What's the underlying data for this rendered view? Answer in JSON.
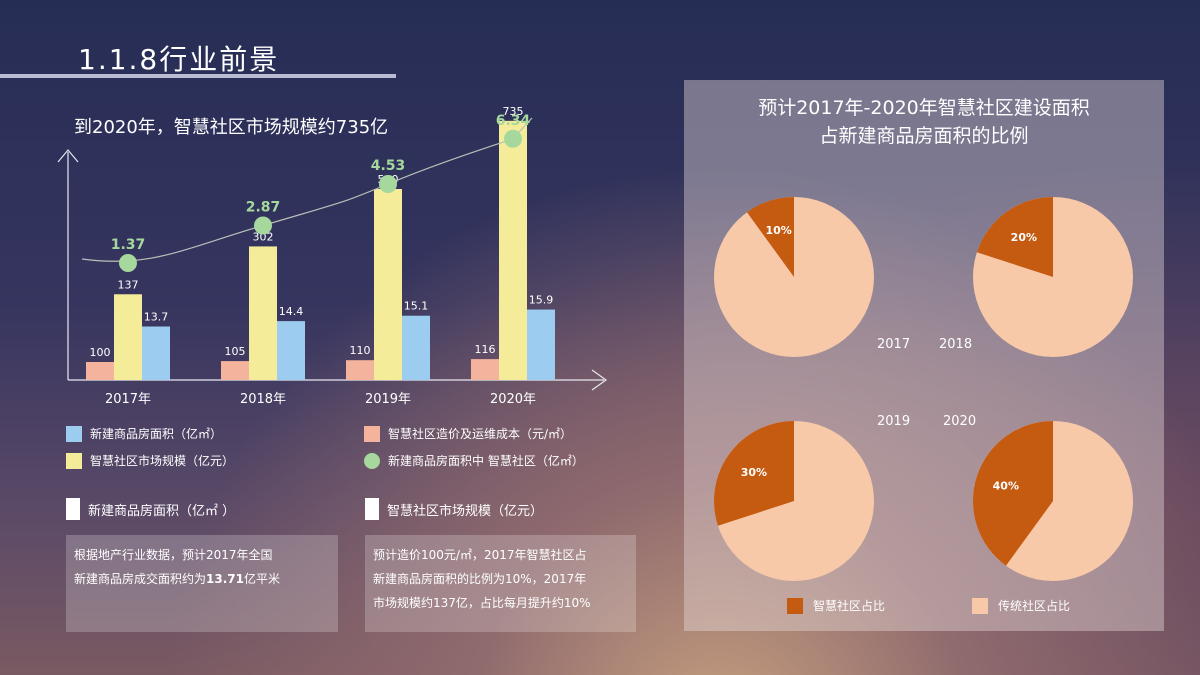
{
  "header": {
    "title": "1.1.8行业前景"
  },
  "subtitle": "到2020年，智慧社区市场规模约735亿",
  "chart_data": [
    {
      "type": "bar",
      "categories": [
        "2017年",
        "2018年",
        "2019年",
        "2020年"
      ],
      "series": [
        {
          "name": "智慧社区造价及运维成本（元/㎡）",
          "values": [
            100,
            105,
            110,
            116
          ],
          "color": "#f4b39c"
        },
        {
          "name": "智慧社区市场规模（亿元）",
          "values": [
            137,
            302,
            500,
            735
          ],
          "color": "#f5ec9a"
        },
        {
          "name": "新建商品房面积（亿㎡）",
          "values": [
            13.7,
            14.4,
            15.1,
            15.9
          ],
          "color": "#9ccdf0"
        },
        {
          "name": "新建商品房面积中 智慧社区（亿㎡）",
          "values": [
            1.37,
            2.87,
            4.53,
            6.34
          ],
          "color": "#a6d79c"
        }
      ]
    },
    {
      "type": "pie",
      "title": "预计2017年-2020年智慧社区建设面积占新建商品房面积的比例",
      "categories": [
        "2017",
        "2018",
        "2019",
        "2020"
      ],
      "series": [
        {
          "name": "智慧社区占比",
          "values": [
            10,
            20,
            30,
            40
          ],
          "labels": [
            "10%",
            "20%",
            "30%",
            "40%"
          ],
          "color": "#c55a11"
        },
        {
          "name": "传统社区占比",
          "values": [
            90,
            80,
            70,
            60
          ],
          "color": "#f8c9a8"
        }
      ]
    }
  ],
  "legend": {
    "area": "新建商品房面积（亿㎡）",
    "cost": "智慧社区造价及运维成本（元/㎡）",
    "market": "智慧社区市场规模（亿元）",
    "share": "新建商品房面积中 智慧社区（亿㎡）"
  },
  "notes": {
    "left_header": "新建商品房面积（亿㎡ ）",
    "right_header": "智慧社区市场规模（亿元）",
    "left_text_1": "根据地产行业数据，预计2017年全国",
    "left_text_2a": "新建商品房成交面积约为",
    "left_value": "13.71",
    "left_text_2b": "亿平米",
    "right_text_1": "预计造价100元/㎡，2017年智慧社区占",
    "right_text_2": "新建商品房面积的比例为10%，2017年",
    "right_text_3": "市场规模约137亿，占比每月提升约10%"
  },
  "pie_panel": {
    "title_line1": "预计2017年-2020年智慧社区建设面积",
    "title_line2": "占新建商品房面积的比例",
    "years": [
      "2017",
      "2018",
      "2019",
      "2020"
    ],
    "legend_smart": "智慧社区占比",
    "legend_traditional": "传统社区占比"
  },
  "colors": {
    "cost": "#f4b39c",
    "market": "#f5ec9a",
    "area": "#9ccdf0",
    "share": "#a6d79c",
    "share_text": "#a6d79c",
    "smart": "#c55a11",
    "traditional": "#f8c9a8"
  }
}
